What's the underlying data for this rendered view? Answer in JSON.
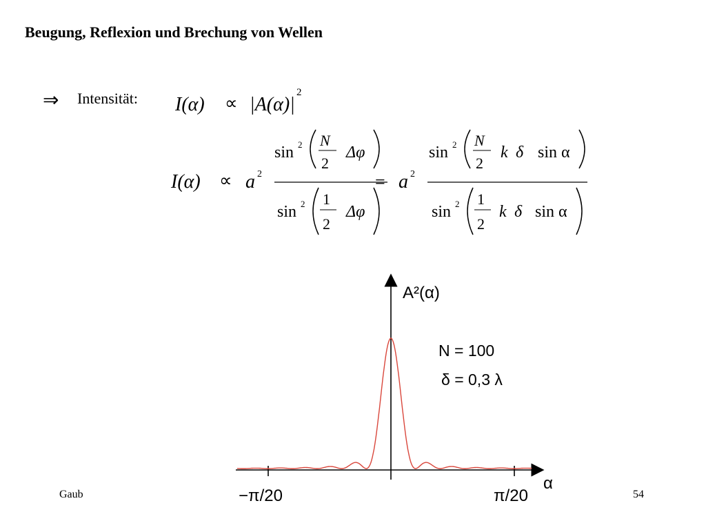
{
  "slide": {
    "title": "Beugung, Reflexion und Brechung von Wellen",
    "arrow": "⇒",
    "intensity_label": "Intensität:",
    "footer_left": "Gaub",
    "page_number": "54"
  },
  "equations": {
    "line1": {
      "lhs": "I(α)",
      "prop": "∝",
      "rhs": "|A(α)|",
      "exp": "2"
    },
    "line2": {
      "lhs": "I(α)",
      "prop": "∝",
      "amp": "a",
      "amp_exp": "2",
      "equals": "=",
      "frac1": {
        "num": {
          "fn": "sin",
          "exp": "2",
          "frac_top": "N",
          "frac_bot": "2",
          "arg": "Δφ"
        },
        "den": {
          "fn": "sin",
          "exp": "2",
          "frac_top": "1",
          "frac_bot": "2",
          "arg": "Δφ"
        }
      },
      "frac2": {
        "num": {
          "fn": "sin",
          "exp": "2",
          "frac_top": "N",
          "frac_bot": "2",
          "arg_k": "k",
          "arg_delta": "δ",
          "arg_sin": "sin α"
        },
        "den": {
          "fn": "sin",
          "exp": "2",
          "frac_top": "1",
          "frac_bot": "2",
          "arg_k": "k",
          "arg_delta": "δ",
          "arg_sin": "sin α"
        }
      }
    }
  },
  "chart_data": {
    "type": "line",
    "title": "",
    "ylabel": "A²(α)",
    "xlabel": "α",
    "x_ticks": [
      "−π/20",
      "π/20"
    ],
    "annotations": [
      "N = 100",
      "δ = 0,3 λ"
    ],
    "series": [
      {
        "color": "#d9463b",
        "x": [
          -0.157,
          -0.12,
          -0.09,
          -0.06,
          -0.045,
          -0.03,
          -0.02,
          -0.012,
          -0.007,
          0,
          0.007,
          0.012,
          0.02,
          0.03,
          0.045,
          0.06,
          0.09,
          0.12,
          0.157
        ],
        "y": [
          0.01,
          0.02,
          0.01,
          0.02,
          0.03,
          0.05,
          0.02,
          0.1,
          0.5,
          1.0,
          0.5,
          0.1,
          0.02,
          0.05,
          0.03,
          0.02,
          0.01,
          0.02,
          0.01
        ]
      }
    ]
  }
}
